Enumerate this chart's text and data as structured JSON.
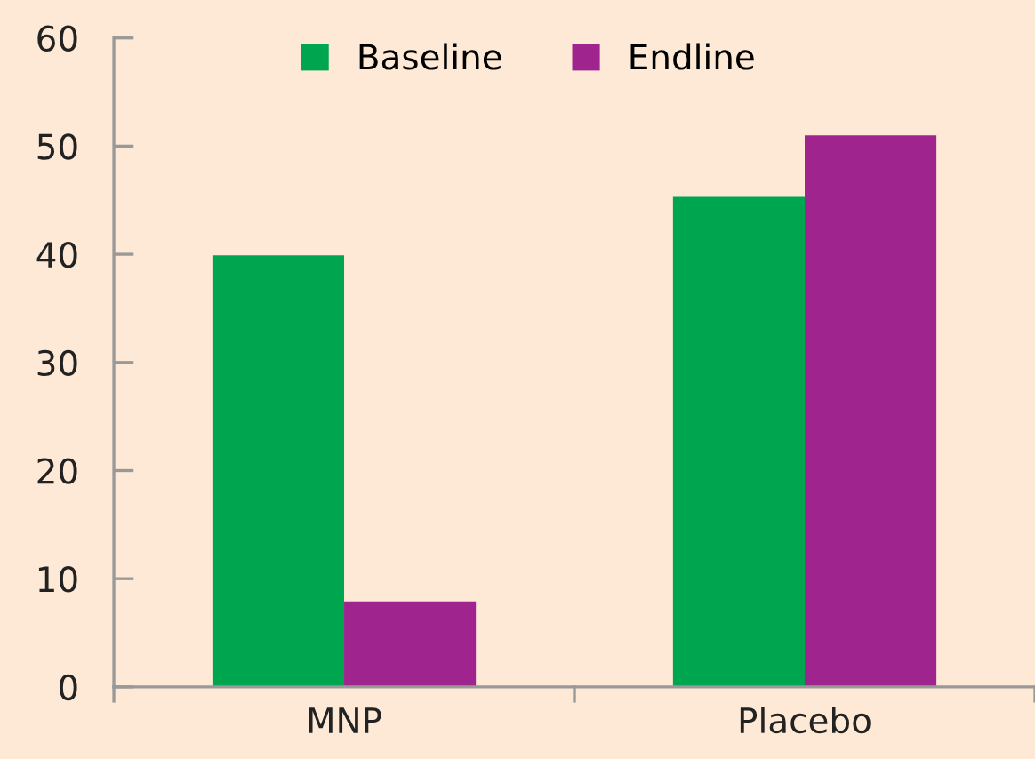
{
  "chart_data": {
    "type": "bar",
    "categories": [
      "MNP",
      "Placebo"
    ],
    "series": [
      {
        "name": "Baseline",
        "color": "#00a550",
        "values": [
          39.9,
          45.3
        ]
      },
      {
        "name": "Endline",
        "color": "#a0248e",
        "values": [
          7.9,
          51.0
        ]
      }
    ],
    "ylim": [
      0,
      60
    ],
    "yticks": [
      0,
      10,
      20,
      30,
      40,
      50,
      60
    ],
    "grid": false,
    "legend": "top"
  }
}
